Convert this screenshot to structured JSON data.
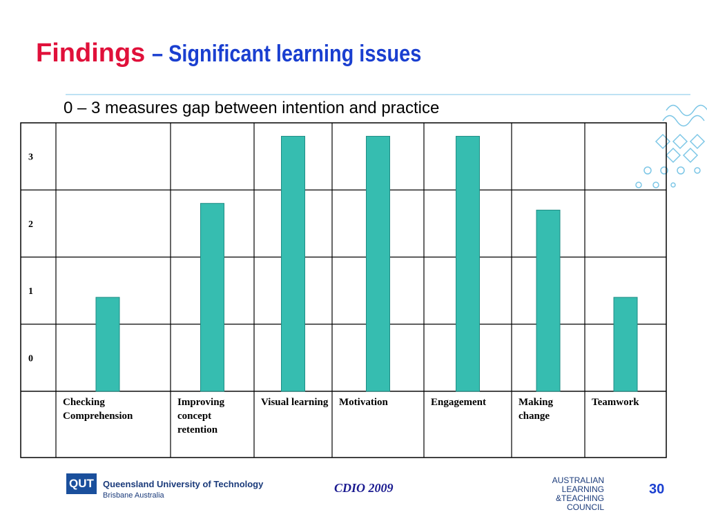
{
  "chart_data": {
    "type": "bar",
    "title": "Findings",
    "subtitle": "– Significant learning issues",
    "note": "0 – 3 measures gap between intention and practice",
    "categories": [
      "Checking Comprehension",
      "Improving concept retention",
      "Visual learning",
      "Motivation",
      "Engagement",
      "Making change",
      "Teamwork"
    ],
    "values": [
      0.9,
      2.3,
      3.3,
      3.3,
      3.3,
      2.2,
      0.9
    ],
    "color": "#36bdb0",
    "ylim": [
      -0.5,
      3.5
    ],
    "yticks": [
      0,
      1,
      2,
      3
    ],
    "grid": true
  },
  "footer": {
    "logo": "QUT",
    "university": "Queensland University of Technology",
    "location": "Brisbane Australia",
    "event": "CDIO 2009",
    "council": [
      "AUSTRALIAN",
      "LEARNING",
      "&TEACHING",
      "COUNCIL"
    ],
    "page": "30"
  }
}
